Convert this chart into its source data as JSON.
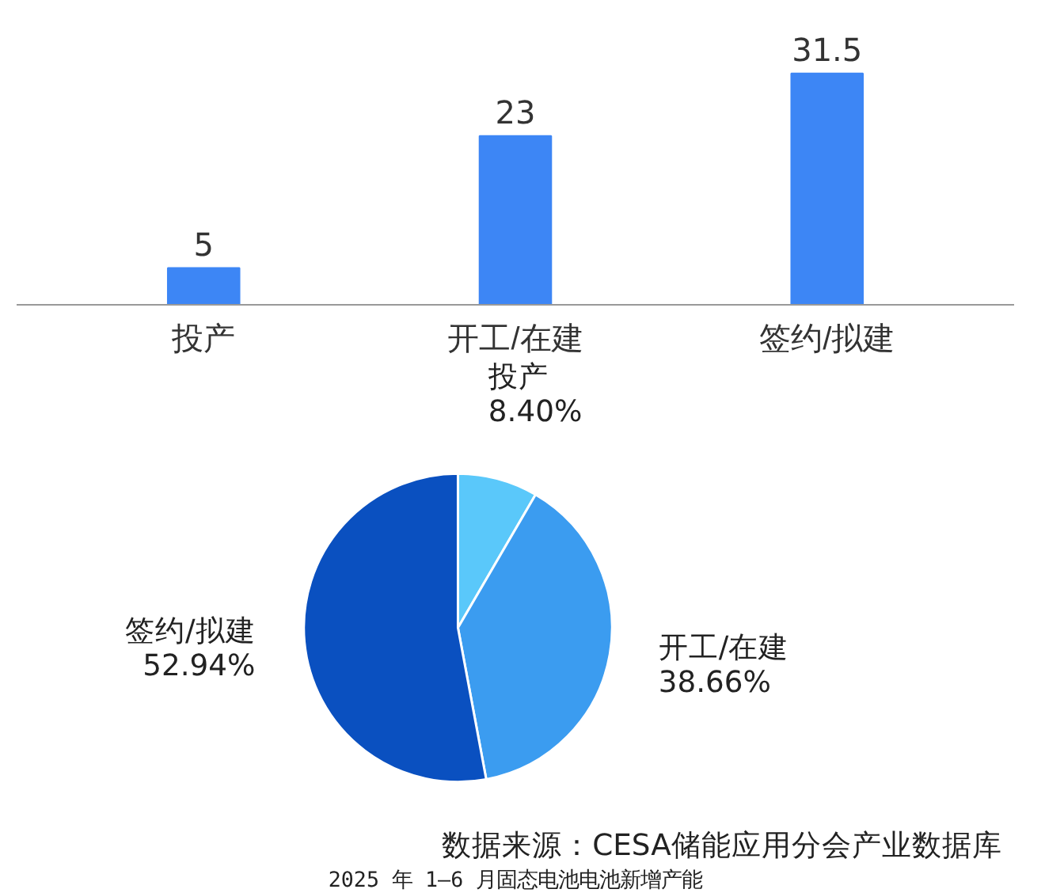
{
  "chart_data": [
    {
      "type": "bar",
      "categories": [
        "投产",
        "开工/在建",
        "签约/拟建"
      ],
      "values": [
        5,
        23,
        31.5
      ],
      "color": "#3d86f5",
      "data_labels": true,
      "grid": false
    },
    {
      "type": "pie",
      "categories": [
        "投产",
        "开工/在建",
        "签约/拟建"
      ],
      "values": [
        8.4,
        38.66,
        52.94
      ],
      "colors": [
        "#5ac8fa",
        "#3b9cf0",
        "#0a50c0"
      ],
      "value_labels": [
        "8.40%",
        "38.66%",
        "52.94%"
      ],
      "annotations": [
        "数据来源：CESA储能应用分会产业数据库",
        "2025 年 1—6 月固态电池电池新增产能"
      ]
    }
  ]
}
